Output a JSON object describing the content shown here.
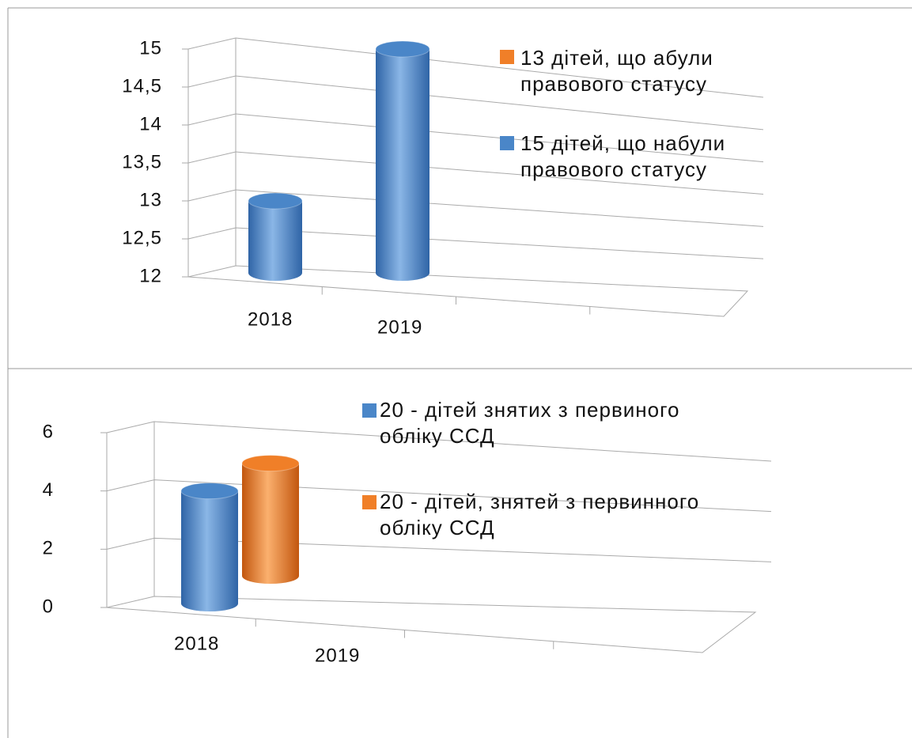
{
  "chart_data": [
    {
      "type": "bar",
      "categories": [
        "2018",
        "2019"
      ],
      "series": [
        {
          "name": "13 дітей, що абули правового статусу",
          "color": "#f07f28",
          "values": [
            null,
            null
          ]
        },
        {
          "name": "15 дітей, що набули правового статусу",
          "color": "#4a86c8",
          "values": [
            13,
            15
          ]
        }
      ],
      "ylim": [
        12,
        15
      ],
      "yticks": [
        12,
        {
          "value": 12.5,
          "label": "12,5"
        },
        13,
        {
          "value": 13.5,
          "label": "13,5"
        },
        14,
        {
          "value": 14.5,
          "label": "14,5"
        },
        15
      ],
      "grid": true
    },
    {
      "type": "bar",
      "categories": [
        "2018",
        "2019"
      ],
      "series": [
        {
          "name": "20 - дітей знятих з первиного обліку ССД",
          "color": "#4a86c8",
          "values": [
            4,
            null
          ]
        },
        {
          "name": "20 - дітей, знятей з первинного обліку ССД",
          "color": "#f07f28",
          "values": [
            4,
            null
          ]
        }
      ],
      "ylim": [
        0,
        6
      ],
      "yticks": [
        0,
        2,
        4,
        6
      ],
      "grid": true
    }
  ]
}
